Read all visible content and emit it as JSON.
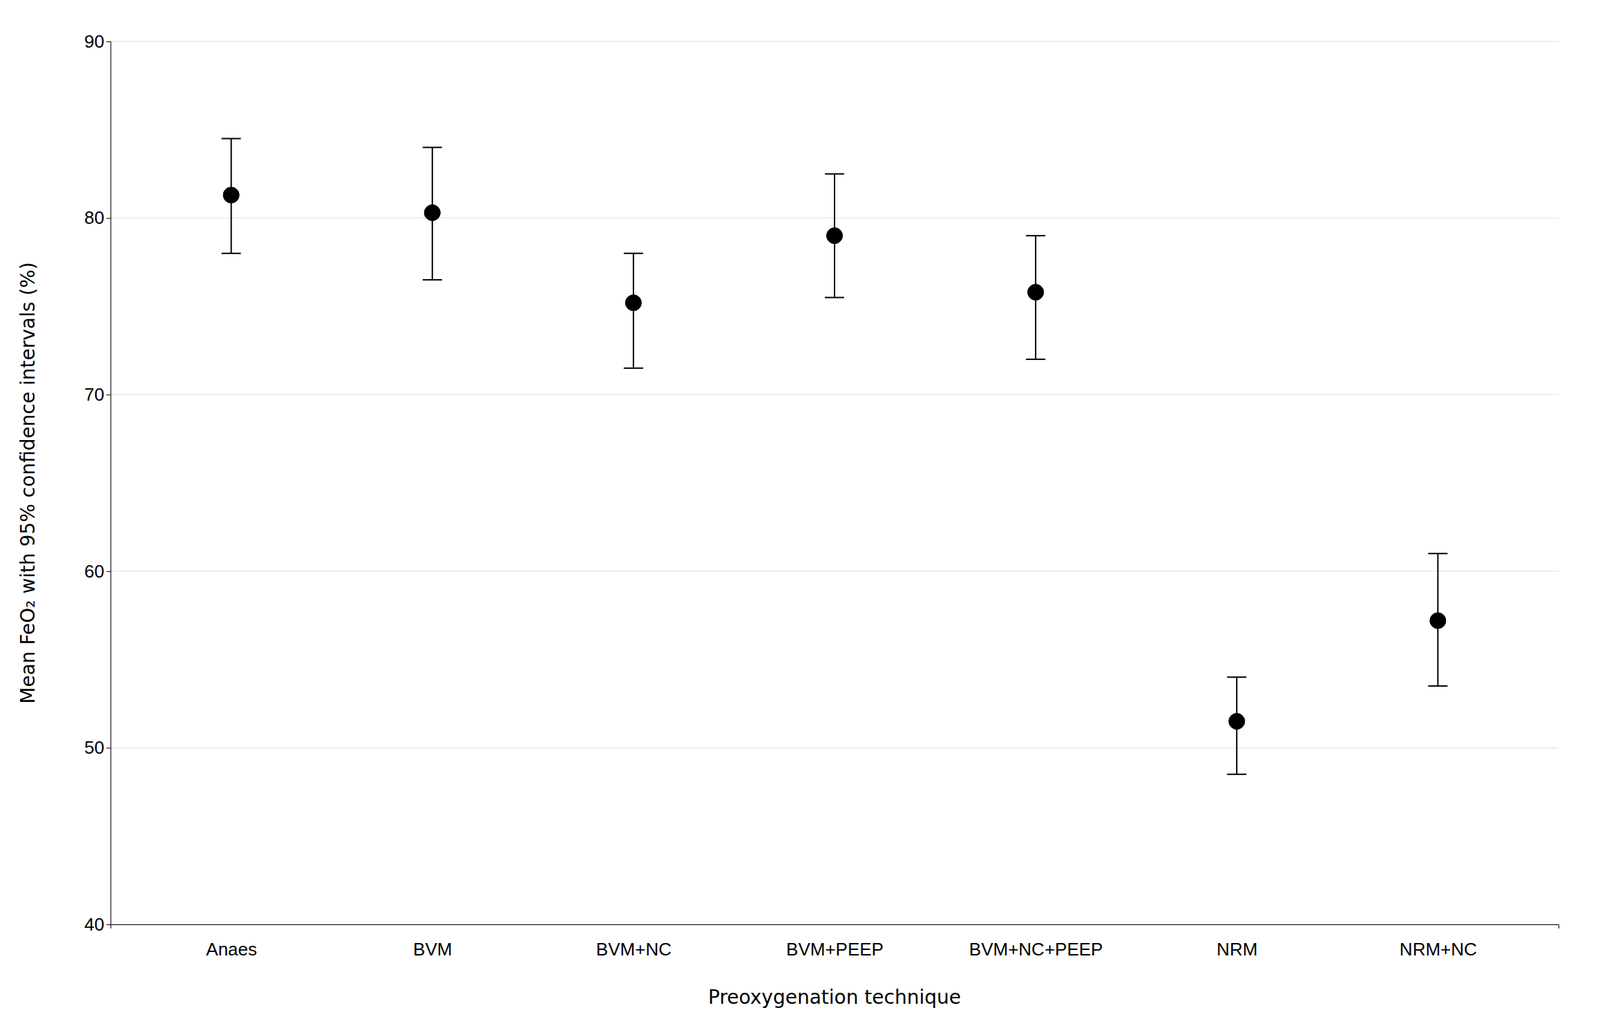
{
  "chart_data": {
    "type": "errorbar",
    "categories": [
      "Anaes",
      "BVM",
      "BVM+NC",
      "BVM+PEEP",
      "BVM+NC+PEEP",
      "NRM",
      "NRM+NC"
    ],
    "values": [
      81.3,
      80.3,
      75.2,
      79.0,
      75.8,
      51.5,
      57.2
    ],
    "ci_lower": [
      78.0,
      76.5,
      71.5,
      75.5,
      72.0,
      48.5,
      53.5
    ],
    "ci_upper": [
      84.5,
      84.0,
      78.0,
      82.5,
      79.0,
      54.0,
      61.0
    ],
    "xlabel": "Preoxygenation technique",
    "ylabel": "Mean FeO₂ with 95% confidence intervals (%)",
    "ylim": [
      40,
      90
    ],
    "yticks": [
      40,
      50,
      60,
      70,
      80,
      90
    ],
    "color": "#000000",
    "marker": "circle",
    "grid": true
  }
}
